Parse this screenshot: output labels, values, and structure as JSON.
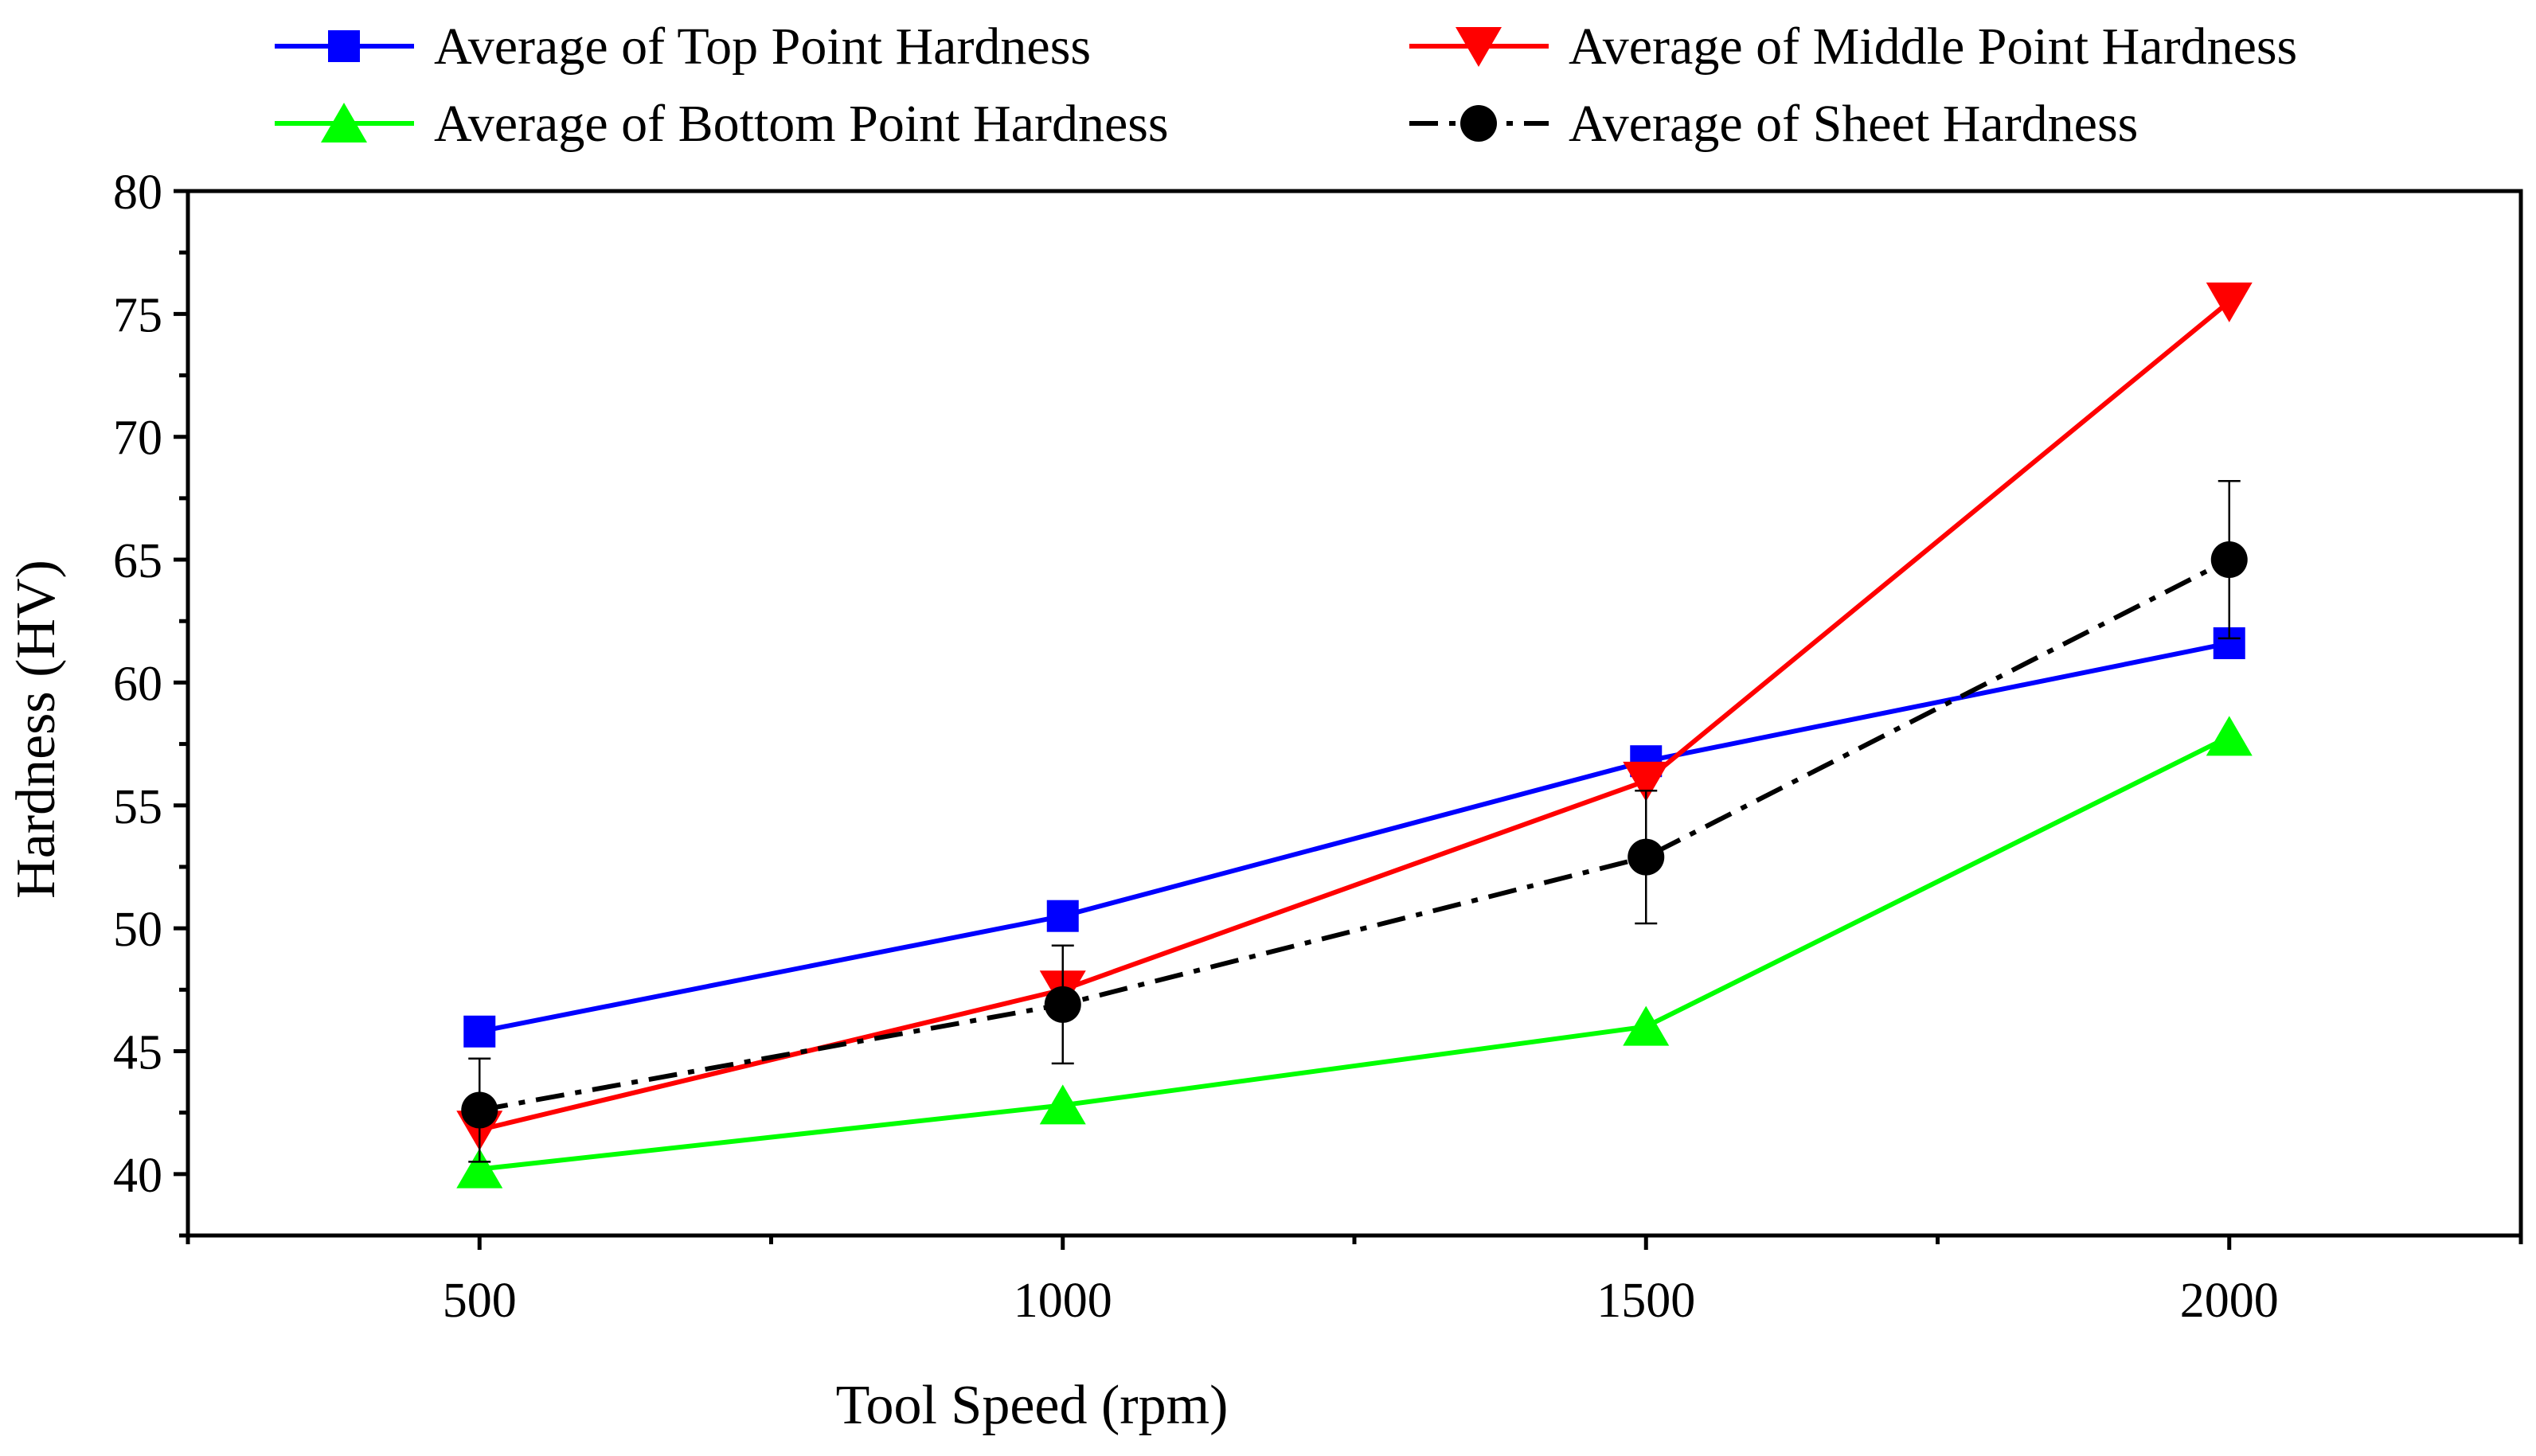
{
  "chart_data": {
    "type": "line",
    "title": "",
    "xlabel": "Tool Speed (rpm)",
    "ylabel": "Hardness (HV)",
    "x": [
      500,
      1000,
      1500,
      2000
    ],
    "xlim": [
      250,
      2250
    ],
    "ylim": [
      37.5,
      80
    ],
    "x_ticks": [
      500,
      1000,
      1500,
      2000
    ],
    "x_tick_labels": [
      "500",
      "1000",
      "1500",
      "2000"
    ],
    "y_ticks": [
      40,
      45,
      50,
      55,
      60,
      65,
      70,
      75,
      80
    ],
    "y_tick_labels": [
      "40",
      "45",
      "50",
      "55",
      "60",
      "65",
      "70",
      "75",
      "80"
    ],
    "grid": false,
    "legend_position": "top",
    "series": [
      {
        "name": "Average of Top Point Hardness",
        "color": "#0000ff",
        "marker": "square",
        "line_style": "solid",
        "values": [
          45.8,
          50.5,
          56.8,
          61.6
        ]
      },
      {
        "name": "Average of Middle Point Hardness",
        "color": "#ff0000",
        "marker": "triangle-down",
        "line_style": "solid",
        "values": [
          41.8,
          47.5,
          56.0,
          75.5
        ]
      },
      {
        "name": "Average of Bottom Point Hardness",
        "color": "#00ff00",
        "marker": "triangle-up",
        "line_style": "solid",
        "values": [
          40.2,
          42.8,
          46.0,
          57.8
        ]
      },
      {
        "name": "Average of Sheet Hardness",
        "color": "#000000",
        "marker": "circle",
        "line_style": "dash-dot",
        "values": [
          42.6,
          46.9,
          52.9,
          65.0
        ],
        "error": [
          2.1,
          2.4,
          2.7,
          3.2
        ]
      }
    ]
  }
}
